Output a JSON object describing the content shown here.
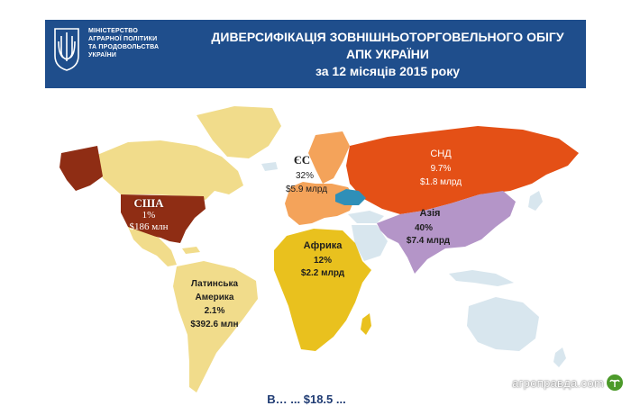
{
  "header": {
    "ministry_lines": [
      "МІНІСТЕРСТВО",
      "АГРАРНОЇ ПОЛІТИКИ",
      "ТА ПРОДОВОЛЬСТВА",
      "УКРАЇНИ"
    ],
    "title_lines": [
      "ДИВЕРСИФІКАЦІЯ  ЗОВНІШНЬОТОРГОВЕЛЬНОГО  ОБІГУ",
      "АПК УКРАЇНИ",
      "за 12 місяців 2015 року"
    ]
  },
  "regions": {
    "usa": {
      "name": "США",
      "share": "1%",
      "amount": "$186 млн"
    },
    "eu": {
      "name": "ЄС",
      "share": "32%",
      "amount": "$5.9 млрд"
    },
    "cis": {
      "name": "СНД",
      "share": "9.7%",
      "amount": "$1.8 млрд"
    },
    "asia": {
      "name": "Азія",
      "share": "40%",
      "amount": "$7.4 млрд"
    },
    "africa": {
      "name": "Африка",
      "share": "12%",
      "amount": "$2.2 млрд"
    },
    "latam": {
      "name_line1": "Латинська",
      "name_line2": "Америка",
      "share": "2.1%",
      "amount": "$392.6 млн"
    }
  },
  "footer": {
    "total_partial": "В… ... $18.5 ..."
  },
  "watermark": {
    "text": "агроправда.com"
  },
  "colors": {
    "header_bg": "#1f4e8c",
    "usa": "#8f2d14",
    "north_america": "#f1dc8b",
    "latin_america": "#f1dc8b",
    "eu": "#f4a35a",
    "cis": "#e45016",
    "asia": "#b495c8",
    "africa": "#e9c11e",
    "other_land": "#d8e6ee",
    "ukraine": "#2f8fb8"
  }
}
